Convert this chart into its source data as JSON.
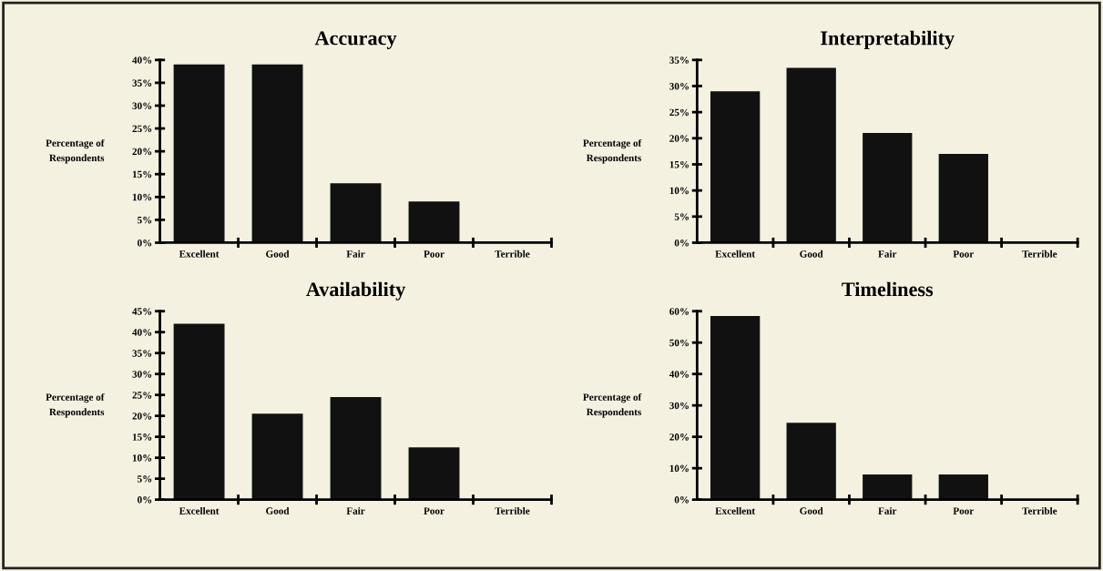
{
  "chart_data": [
    {
      "type": "bar",
      "title": "Accuracy",
      "ylabel": "Percentage of\nRespondents",
      "categories": [
        "Excellent",
        "Good",
        "Fair",
        "Poor",
        "Terrible"
      ],
      "values": [
        39,
        39,
        13,
        9,
        0
      ],
      "color": "#111111",
      "ylim": [
        0,
        40
      ],
      "yticks": [
        {
          "value": 0,
          "label": "0%"
        },
        {
          "value": 5,
          "label": "5%"
        },
        {
          "value": 10,
          "label": "10%"
        },
        {
          "value": 15,
          "label": "15%"
        },
        {
          "value": 20,
          "label": "20%"
        },
        {
          "value": 25,
          "label": "25%"
        },
        {
          "value": 30,
          "label": "30%"
        },
        {
          "value": 35,
          "label": "35%"
        },
        {
          "value": 40,
          "label": "40%"
        }
      ],
      "grid": false,
      "legend": false
    },
    {
      "type": "bar",
      "title": "Interpretability",
      "ylabel": "Percentage of\nRespondents",
      "categories": [
        "Excellent",
        "Good",
        "Fair",
        "Poor",
        "Terrible"
      ],
      "values": [
        29,
        33.5,
        21,
        17,
        0
      ],
      "color": "#111111",
      "ylim": [
        0,
        35
      ],
      "yticks": [
        {
          "value": 0,
          "label": "0%"
        },
        {
          "value": 5,
          "label": "5%"
        },
        {
          "value": 10,
          "label": "10%"
        },
        {
          "value": 15,
          "label": "15%"
        },
        {
          "value": 20,
          "label": "20%"
        },
        {
          "value": 25,
          "label": "25%"
        },
        {
          "value": 30,
          "label": "30%"
        },
        {
          "value": 35,
          "label": "35%"
        }
      ],
      "grid": false,
      "legend": false
    },
    {
      "type": "bar",
      "title": "Availability",
      "ylabel": "Percentage of\nRespondents",
      "categories": [
        "Excellent",
        "Good",
        "Fair",
        "Poor",
        "Terrible"
      ],
      "values": [
        42,
        20.5,
        24.5,
        12.5,
        0
      ],
      "color": "#111111",
      "ylim": [
        0,
        45
      ],
      "yticks": [
        {
          "value": 0,
          "label": "0%"
        },
        {
          "value": 5,
          "label": "5%"
        },
        {
          "value": 10,
          "label": "10%"
        },
        {
          "value": 15,
          "label": "15%"
        },
        {
          "value": 20,
          "label": "20%"
        },
        {
          "value": 25,
          "label": "25%"
        },
        {
          "value": 30,
          "label": "30%"
        },
        {
          "value": 35,
          "label": "35%"
        },
        {
          "value": 40,
          "label": "40%"
        },
        {
          "value": 45,
          "label": "45%"
        }
      ],
      "grid": false,
      "legend": false
    },
    {
      "type": "bar",
      "title": "Timeliness",
      "ylabel": "Percentage of\nRespondents",
      "categories": [
        "Excellent",
        "Good",
        "Fair",
        "Poor",
        "Terrible"
      ],
      "values": [
        58.5,
        24.5,
        8,
        8,
        0
      ],
      "color": "#111111",
      "ylim": [
        0,
        60
      ],
      "yticks": [
        {
          "value": 0,
          "label": "0%"
        },
        {
          "value": 10,
          "label": "10%"
        },
        {
          "value": 20,
          "label": "20%"
        },
        {
          "value": 30,
          "label": "30%"
        },
        {
          "value": 40,
          "label": "40%"
        },
        {
          "value": 50,
          "label": "50%"
        },
        {
          "value": 60,
          "label": "60%"
        }
      ],
      "grid": false,
      "legend": false
    }
  ]
}
